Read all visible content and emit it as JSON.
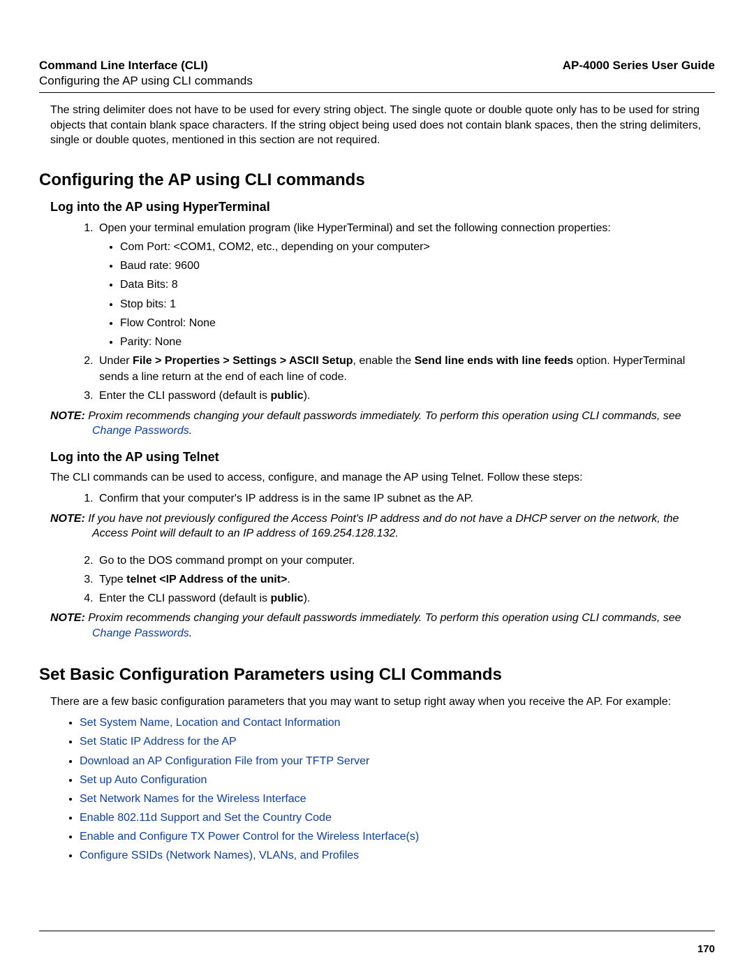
{
  "header": {
    "left": "Command Line Interface (CLI)",
    "right": "AP-4000 Series User Guide",
    "sub": "Configuring the AP using CLI commands"
  },
  "intro": "The string delimiter does not have to be used for every string object. The single quote or double quote only has to be used for string objects that contain blank space characters. If the string object being used does not contain blank spaces, then the string delimiters, single or double quotes, mentioned in this section are not required.",
  "h1_a": "Configuring the AP using CLI commands",
  "h2_hyper": "Log into the AP using HyperTerminal",
  "hyper_step1": "Open your terminal emulation program (like HyperTerminal) and set the following connection properties:",
  "hyper_bullets": {
    "b1": "Com Port: <COM1, COM2, etc., depending on your computer>",
    "b2": "Baud rate: 9600",
    "b3": "Data Bits: 8",
    "b4": "Stop bits: 1",
    "b5": "Flow Control: None",
    "b6": "Parity: None"
  },
  "hyper_step2_pre": "Under ",
  "hyper_step2_bold1": "File > Properties > Settings > ASCII Setup",
  "hyper_step2_mid": ", enable the ",
  "hyper_step2_bold2": "Send line ends with line feeds",
  "hyper_step2_post": " option. HyperTerminal sends a line return at the end of each line of code.",
  "hyper_step3_pre": "Enter the CLI password (default is ",
  "hyper_step3_bold": "public",
  "hyper_step3_post": ").",
  "note1_label": "NOTE:  ",
  "note1_text_pre": "Proxim recommends changing your default passwords immediately. To perform this operation using CLI commands, see ",
  "note1_link": "Change Passwords",
  "note1_text_post": ".",
  "h2_telnet": "Log into the AP using Telnet",
  "telnet_intro": "The CLI commands can be used to access, configure, and manage the AP using Telnet. Follow these steps:",
  "telnet_step1": "Confirm that your computer's IP address is in the same IP subnet as the AP.",
  "note2_label": "NOTE:  ",
  "note2_text": "If you have not previously configured the Access Point's IP address and do not have a DHCP server on the network, the Access Point will default to an IP address of 169.254.128.132.",
  "telnet_step2": "Go to the DOS command prompt on your computer.",
  "telnet_step3_pre": "Type ",
  "telnet_step3_bold": "telnet <IP Address of the unit>",
  "telnet_step3_post": ".",
  "telnet_step4_pre": "Enter the CLI password (default is ",
  "telnet_step4_bold": "public",
  "telnet_step4_post": ").",
  "note3_label": "NOTE:  ",
  "note3_text_pre": "Proxim recommends changing your default passwords immediately. To perform this operation using CLI commands, see ",
  "note3_link": "Change Passwords",
  "note3_text_post": ".",
  "h1_b": "Set Basic Configuration Parameters using CLI Commands",
  "basics_intro": "There are a few basic configuration parameters that you may want to setup right away when you receive the AP. For example:",
  "links": {
    "l1": "Set System Name, Location and Contact Information",
    "l2": "Set Static IP Address for the AP",
    "l3": "Download an AP Configuration File from your TFTP Server",
    "l4": "Set up Auto Configuration",
    "l5": "Set Network Names for the Wireless Interface",
    "l6": "Enable 802.11d Support and Set the Country Code",
    "l7": "Enable and Configure TX Power Control for the Wireless Interface(s)",
    "l8": "Configure SSIDs (Network Names), VLANs, and Profiles"
  },
  "page_number": "170"
}
